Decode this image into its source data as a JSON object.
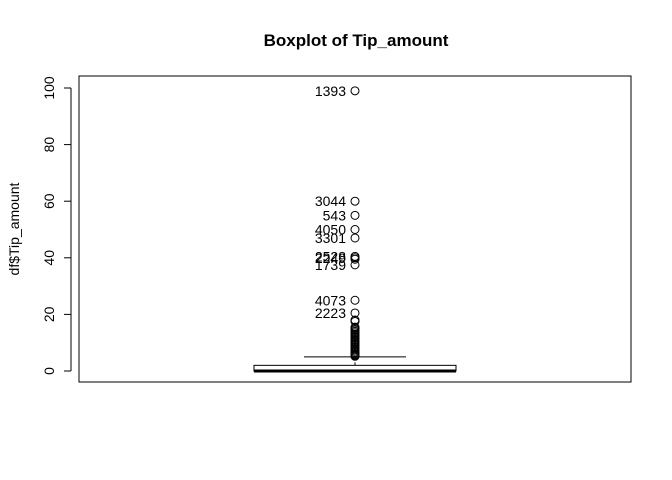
{
  "chart_data": {
    "type": "boxplot",
    "title": "Boxplot of Tip_amount",
    "xlabel": "",
    "ylabel": "df$Tip_amount",
    "ylim": [
      -4,
      104
    ],
    "yticks": [
      0,
      20,
      40,
      60,
      80,
      100
    ],
    "ytick_labels": [
      "0",
      "20",
      "40",
      "60",
      "80",
      "100"
    ],
    "box": {
      "min": 0,
      "q1": 0,
      "median": 0,
      "q3": 2,
      "whisker_high": 5,
      "whisker_low": 0
    },
    "outliers": [
      99,
      60,
      55,
      50,
      47,
      40.5,
      40,
      39.5,
      37.5,
      25,
      20.5,
      18,
      17.5,
      15.5,
      15,
      14.5,
      14,
      13.5,
      13,
      12.5,
      12,
      11.5,
      11,
      10.5,
      10,
      9.5,
      9,
      8.5,
      8,
      7.5,
      7,
      6.5,
      6,
      5.7,
      5.4,
      5.2
    ],
    "labeled_outliers": [
      {
        "label": "1393",
        "value": 99
      },
      {
        "label": "3044",
        "value": 60
      },
      {
        "label": "543",
        "value": 55
      },
      {
        "label": "4050",
        "value": 50
      },
      {
        "label": "3301",
        "value": 47
      },
      {
        "label": "2528",
        "value": 40.5
      },
      {
        "label": "2249",
        "value": 40
      },
      {
        "label": "1739",
        "value": 37.5
      },
      {
        "label": "4073",
        "value": 25
      },
      {
        "label": "2223",
        "value": 20.5
      }
    ]
  }
}
